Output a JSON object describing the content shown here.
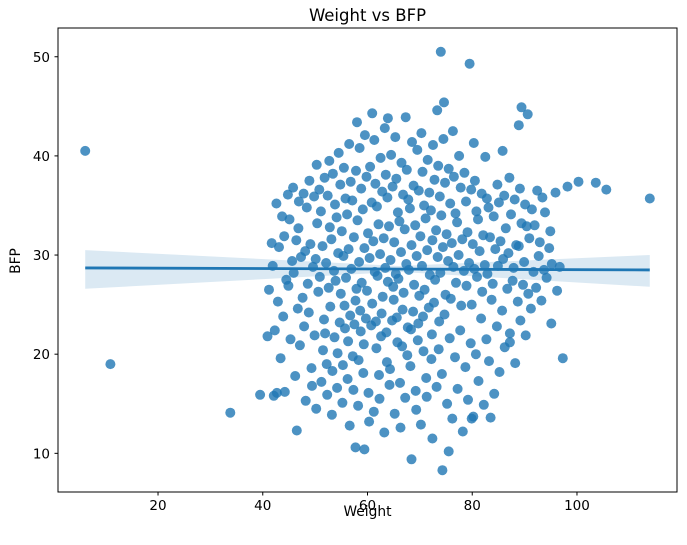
{
  "figure": {
    "title": "Weight vs BFP"
  },
  "chart_data": {
    "type": "scatter",
    "title": "Weight vs BFP",
    "xlabel": "Weight",
    "ylabel": "BFP",
    "xlim": [
      0.9,
      119.1
    ],
    "ylim": [
      6.1,
      52.9
    ],
    "xticks": [
      20,
      40,
      60,
      80,
      100
    ],
    "yticks": [
      10,
      20,
      30,
      40,
      50
    ],
    "grid": false,
    "legend": "none",
    "marker_color": "#1f77b4",
    "marker_alpha": 0.8,
    "regression_line": {
      "color": "#1f77b4",
      "x": [
        6.1,
        113.9
      ],
      "y": [
        28.7,
        28.5
      ]
    },
    "confidence_band": {
      "color": "#1f77b4",
      "opacity": 0.16,
      "x": [
        6.1,
        66.0,
        113.9
      ],
      "top": [
        30.5,
        28.9,
        30.0
      ],
      "bottom": [
        26.6,
        28.3,
        26.8
      ]
    },
    "points": [
      [
        6.1,
        40.5
      ],
      [
        10.9,
        19.0
      ],
      [
        33.8,
        14.1
      ],
      [
        113.9,
        35.7
      ],
      [
        74.0,
        50.5
      ],
      [
        79.5,
        49.3
      ],
      [
        74.6,
        45.4
      ],
      [
        89.4,
        44.9
      ],
      [
        90.6,
        44.2
      ],
      [
        88.9,
        43.1
      ],
      [
        74.3,
        8.3
      ],
      [
        68.4,
        9.4
      ],
      [
        75.5,
        10.2
      ],
      [
        57.7,
        10.6
      ],
      [
        59.4,
        10.4
      ],
      [
        72.4,
        11.5
      ],
      [
        79.9,
        13.5
      ],
      [
        83.5,
        13.6
      ],
      [
        95.9,
        36.3
      ],
      [
        98.2,
        36.9
      ],
      [
        100.3,
        37.4
      ],
      [
        103.6,
        37.3
      ],
      [
        105.6,
        36.6
      ],
      [
        97.3,
        19.6
      ],
      [
        95.1,
        23.1
      ],
      [
        87.2,
        21.2
      ],
      [
        46.5,
        12.3
      ],
      [
        39.5,
        15.9
      ],
      [
        42.7,
        16.1
      ],
      [
        41.2,
        26.5
      ],
      [
        41.7,
        31.2
      ],
      [
        40.9,
        21.8
      ],
      [
        42.3,
        22.4
      ],
      [
        41.9,
        28.9
      ],
      [
        42.6,
        35.2
      ],
      [
        42.1,
        15.8
      ],
      [
        43.4,
        19.6
      ],
      [
        42.9,
        25.3
      ],
      [
        43.1,
        30.8
      ],
      [
        43.7,
        33.9
      ],
      [
        44.2,
        16.2
      ],
      [
        43.9,
        23.8
      ],
      [
        44.5,
        27.5
      ],
      [
        44.1,
        31.9
      ],
      [
        44.8,
        36.1
      ],
      [
        45.3,
        21.5
      ],
      [
        44.9,
        26.9
      ],
      [
        45.6,
        29.4
      ],
      [
        45.1,
        33.6
      ],
      [
        45.8,
        36.8
      ],
      [
        46.2,
        17.8
      ],
      [
        46.7,
        24.6
      ],
      [
        45.9,
        28.2
      ],
      [
        46.4,
        31.5
      ],
      [
        46.9,
        35.4
      ],
      [
        47.1,
        20.9
      ],
      [
        47.6,
        25.7
      ],
      [
        47.3,
        29.8
      ],
      [
        46.8,
        32.7
      ],
      [
        47.8,
        36.2
      ],
      [
        48.2,
        15.3
      ],
      [
        47.9,
        22.8
      ],
      [
        48.6,
        27.1
      ],
      [
        48.1,
        30.4
      ],
      [
        48.4,
        34.8
      ],
      [
        48.9,
        37.5
      ],
      [
        49.3,
        18.6
      ],
      [
        48.8,
        24.2
      ],
      [
        49.6,
        28.8
      ],
      [
        49.1,
        31.1
      ],
      [
        49.8,
        35.9
      ],
      [
        49.4,
        16.8
      ],
      [
        50.2,
        14.5
      ],
      [
        49.9,
        21.9
      ],
      [
        50.6,
        26.3
      ],
      [
        50.1,
        29.6
      ],
      [
        50.4,
        33.2
      ],
      [
        50.8,
        36.6
      ],
      [
        50.3,
        39.1
      ],
      [
        51.2,
        17.2
      ],
      [
        51.7,
        23.5
      ],
      [
        50.9,
        27.8
      ],
      [
        51.4,
        30.9
      ],
      [
        51.1,
        34.4
      ],
      [
        51.8,
        37.8
      ],
      [
        51.5,
        20.4
      ],
      [
        52.3,
        15.9
      ],
      [
        51.9,
        22.1
      ],
      [
        52.6,
        26.7
      ],
      [
        52.1,
        29.2
      ],
      [
        52.8,
        32.8
      ],
      [
        52.4,
        36.0
      ],
      [
        52.7,
        39.5
      ],
      [
        52.2,
        19.0
      ],
      [
        53.3,
        18.3
      ],
      [
        52.9,
        24.8
      ],
      [
        53.6,
        28.4
      ],
      [
        53.1,
        31.6
      ],
      [
        53.8,
        35.1
      ],
      [
        53.4,
        38.2
      ],
      [
        53.7,
        21.7
      ],
      [
        53.2,
        13.9
      ],
      [
        54.2,
        16.6
      ],
      [
        54.7,
        23.2
      ],
      [
        53.9,
        27.4
      ],
      [
        54.4,
        30.2
      ],
      [
        54.1,
        33.8
      ],
      [
        54.8,
        37.1
      ],
      [
        54.5,
        40.3
      ],
      [
        54.3,
        20.1
      ],
      [
        55.2,
        15.1
      ],
      [
        55.7,
        22.6
      ],
      [
        54.9,
        26.1
      ],
      [
        55.4,
        29.9
      ],
      [
        55.1,
        32.4
      ],
      [
        55.8,
        35.7
      ],
      [
        55.5,
        38.8
      ],
      [
        55.3,
        18.9
      ],
      [
        55.6,
        24.9
      ],
      [
        56.2,
        17.5
      ],
      [
        56.7,
        23.9
      ],
      [
        55.9,
        27.7
      ],
      [
        56.4,
        30.6
      ],
      [
        56.1,
        34.1
      ],
      [
        56.8,
        37.4
      ],
      [
        56.5,
        41.2
      ],
      [
        56.3,
        21.3
      ],
      [
        56.6,
        12.8
      ],
      [
        57.2,
        19.8
      ],
      [
        57.7,
        25.4
      ],
      [
        56.9,
        28.6
      ],
      [
        57.4,
        31.8
      ],
      [
        57.1,
        35.5
      ],
      [
        57.8,
        38.5
      ],
      [
        57.5,
        23.0
      ],
      [
        57.3,
        16.4
      ],
      [
        58.2,
        14.8
      ],
      [
        58.7,
        22.3
      ],
      [
        57.9,
        26.6
      ],
      [
        58.4,
        29.3
      ],
      [
        58.1,
        33.5
      ],
      [
        58.8,
        36.7
      ],
      [
        58.5,
        40.8
      ],
      [
        58.3,
        19.4
      ],
      [
        58.6,
        24.4
      ],
      [
        58.0,
        43.4
      ],
      [
        59.2,
        18.1
      ],
      [
        59.7,
        23.6
      ],
      [
        58.9,
        27.2
      ],
      [
        59.4,
        30.7
      ],
      [
        59.1,
        34.6
      ],
      [
        59.8,
        37.9
      ],
      [
        59.5,
        42.1
      ],
      [
        59.3,
        21.0
      ],
      [
        60.2,
        16.1
      ],
      [
        60.7,
        22.9
      ],
      [
        59.9,
        26.4
      ],
      [
        60.4,
        29.7
      ],
      [
        60.1,
        32.2
      ],
      [
        60.8,
        35.3
      ],
      [
        60.5,
        38.9
      ],
      [
        60.3,
        13.2
      ],
      [
        60.9,
        44.3
      ],
      [
        61.2,
        14.2
      ],
      [
        61.7,
        20.6
      ],
      [
        60.9,
        25.1
      ],
      [
        61.4,
        28.3
      ],
      [
        61.1,
        31.4
      ],
      [
        61.8,
        34.9
      ],
      [
        61.5,
        37.2
      ],
      [
        61.3,
        41.6
      ],
      [
        61.6,
        23.3
      ],
      [
        62.2,
        17.9
      ],
      [
        62.7,
        24.1
      ],
      [
        61.9,
        27.9
      ],
      [
        62.4,
        30.1
      ],
      [
        62.1,
        33.1
      ],
      [
        62.8,
        36.4
      ],
      [
        62.5,
        39.8
      ],
      [
        62.3,
        15.5
      ],
      [
        62.6,
        21.8
      ],
      [
        63.2,
        12.1
      ],
      [
        63.7,
        19.2
      ],
      [
        62.9,
        25.8
      ],
      [
        63.4,
        28.7
      ],
      [
        63.1,
        31.7
      ],
      [
        63.8,
        35.8
      ],
      [
        63.5,
        38.1
      ],
      [
        63.3,
        42.8
      ],
      [
        63.6,
        22.2
      ],
      [
        64.2,
        16.9
      ],
      [
        64.7,
        23.4
      ],
      [
        63.9,
        27.3
      ],
      [
        64.4,
        29.5
      ],
      [
        64.1,
        32.9
      ],
      [
        64.8,
        36.9
      ],
      [
        64.5,
        40.1
      ],
      [
        64.3,
        18.5
      ],
      [
        63.9,
        43.8
      ],
      [
        65.2,
        14.0
      ],
      [
        65.7,
        21.2
      ],
      [
        64.9,
        26.8
      ],
      [
        65.4,
        28.1
      ],
      [
        65.1,
        31.3
      ],
      [
        65.8,
        34.3
      ],
      [
        65.5,
        37.7
      ],
      [
        65.3,
        41.9
      ],
      [
        65.6,
        23.7
      ],
      [
        65.0,
        25.5
      ],
      [
        66.2,
        17.1
      ],
      [
        66.7,
        24.5
      ],
      [
        65.9,
        27.6
      ],
      [
        66.4,
        30.3
      ],
      [
        66.1,
        33.4
      ],
      [
        66.8,
        36.1
      ],
      [
        66.5,
        39.3
      ],
      [
        66.3,
        12.6
      ],
      [
        66.6,
        20.8
      ],
      [
        67.2,
        15.6
      ],
      [
        67.7,
        22.7
      ],
      [
        66.9,
        26.2
      ],
      [
        67.4,
        29.1
      ],
      [
        67.1,
        32.6
      ],
      [
        67.8,
        35.6
      ],
      [
        67.5,
        38.6
      ],
      [
        67.3,
        43.9
      ],
      [
        67.6,
        19.9
      ],
      [
        68.2,
        18.8
      ],
      [
        68.7,
        24.3
      ],
      [
        67.9,
        28.5
      ],
      [
        68.4,
        31.0
      ],
      [
        68.1,
        34.7
      ],
      [
        68.8,
        37.0
      ],
      [
        68.5,
        41.4
      ],
      [
        68.3,
        22.5
      ],
      [
        69.2,
        16.3
      ],
      [
        69.7,
        23.1
      ],
      [
        68.9,
        27.0
      ],
      [
        69.4,
        29.9
      ],
      [
        69.1,
        33.0
      ],
      [
        69.8,
        36.5
      ],
      [
        69.5,
        40.6
      ],
      [
        69.3,
        14.4
      ],
      [
        69.6,
        21.4
      ],
      [
        70.2,
        12.9
      ],
      [
        70.7,
        20.3
      ],
      [
        69.9,
        25.9
      ],
      [
        70.4,
        28.9
      ],
      [
        70.1,
        31.9
      ],
      [
        70.8,
        35.0
      ],
      [
        70.5,
        38.4
      ],
      [
        70.3,
        42.3
      ],
      [
        70.6,
        23.8
      ],
      [
        71.2,
        17.6
      ],
      [
        71.7,
        24.7
      ],
      [
        70.9,
        26.5
      ],
      [
        71.4,
        30.5
      ],
      [
        71.1,
        33.7
      ],
      [
        71.8,
        36.3
      ],
      [
        71.5,
        39.6
      ],
      [
        71.3,
        15.7
      ],
      [
        72.2,
        19.5
      ],
      [
        72.7,
        25.2
      ],
      [
        71.9,
        28.0
      ],
      [
        72.4,
        31.5
      ],
      [
        72.1,
        34.5
      ],
      [
        72.8,
        37.6
      ],
      [
        72.5,
        41.1
      ],
      [
        72.3,
        22.0
      ],
      [
        73.2,
        16.7
      ],
      [
        73.7,
        23.3
      ],
      [
        72.9,
        27.5
      ],
      [
        73.4,
        29.8
      ],
      [
        73.1,
        32.5
      ],
      [
        73.8,
        35.9
      ],
      [
        73.5,
        39.0
      ],
      [
        73.3,
        44.6
      ],
      [
        73.6,
        20.5
      ],
      [
        74.2,
        18.0
      ],
      [
        74.7,
        24.0
      ],
      [
        73.9,
        28.2
      ],
      [
        74.4,
        30.8
      ],
      [
        74.1,
        34.0
      ],
      [
        74.8,
        37.3
      ],
      [
        74.5,
        41.7
      ],
      [
        75.2,
        15.0
      ],
      [
        75.7,
        21.6
      ],
      [
        74.9,
        26.0
      ],
      [
        75.4,
        29.4
      ],
      [
        75.1,
        32.1
      ],
      [
        75.8,
        35.2
      ],
      [
        75.5,
        38.7
      ],
      [
        76.2,
        13.5
      ],
      [
        76.7,
        19.7
      ],
      [
        75.9,
        25.6
      ],
      [
        76.4,
        28.8
      ],
      [
        76.1,
        31.2
      ],
      [
        76.8,
        34.2
      ],
      [
        76.5,
        37.9
      ],
      [
        76.3,
        42.5
      ],
      [
        77.2,
        16.5
      ],
      [
        77.7,
        22.4
      ],
      [
        76.9,
        27.2
      ],
      [
        77.4,
        30.0
      ],
      [
        77.1,
        33.3
      ],
      [
        77.8,
        36.8
      ],
      [
        77.5,
        40.0
      ],
      [
        78.2,
        12.2
      ],
      [
        78.7,
        18.7
      ],
      [
        77.9,
        24.9
      ],
      [
        78.4,
        28.4
      ],
      [
        78.1,
        31.6
      ],
      [
        78.8,
        35.4
      ],
      [
        78.5,
        38.3
      ],
      [
        79.2,
        15.4
      ],
      [
        79.7,
        21.1
      ],
      [
        78.9,
        26.9
      ],
      [
        79.4,
        29.2
      ],
      [
        79.1,
        32.3
      ],
      [
        79.8,
        36.6
      ],
      [
        80.2,
        13.7
      ],
      [
        80.7,
        20.0
      ],
      [
        79.9,
        25.0
      ],
      [
        80.4,
        28.6
      ],
      [
        80.1,
        31.1
      ],
      [
        80.8,
        34.4
      ],
      [
        80.5,
        37.5
      ],
      [
        80.3,
        41.3
      ],
      [
        81.2,
        17.3
      ],
      [
        81.7,
        23.6
      ],
      [
        80.9,
        27.8
      ],
      [
        81.4,
        30.4
      ],
      [
        81.1,
        33.6
      ],
      [
        81.8,
        36.2
      ],
      [
        82.2,
        14.9
      ],
      [
        82.7,
        21.5
      ],
      [
        81.9,
        26.3
      ],
      [
        82.4,
        29.0
      ],
      [
        82.1,
        32.0
      ],
      [
        82.8,
        35.7
      ],
      [
        82.5,
        39.9
      ],
      [
        83.2,
        19.3
      ],
      [
        83.7,
        25.5
      ],
      [
        82.9,
        28.1
      ],
      [
        83.4,
        31.8
      ],
      [
        83.1,
        34.8
      ],
      [
        84.2,
        16.0
      ],
      [
        84.7,
        22.8
      ],
      [
        83.9,
        27.1
      ],
      [
        84.4,
        30.6
      ],
      [
        84.1,
        33.9
      ],
      [
        84.8,
        37.1
      ],
      [
        85.2,
        18.2
      ],
      [
        85.7,
        24.4
      ],
      [
        84.9,
        28.9
      ],
      [
        85.4,
        31.4
      ],
      [
        85.1,
        35.3
      ],
      [
        85.8,
        40.5
      ],
      [
        86.2,
        20.7
      ],
      [
        86.7,
        26.6
      ],
      [
        85.9,
        29.6
      ],
      [
        86.4,
        32.7
      ],
      [
        86.1,
        36.0
      ],
      [
        87.2,
        22.1
      ],
      [
        87.7,
        27.4
      ],
      [
        86.9,
        30.2
      ],
      [
        87.4,
        34.1
      ],
      [
        87.1,
        37.8
      ],
      [
        88.2,
        19.1
      ],
      [
        88.7,
        25.3
      ],
      [
        87.9,
        28.7
      ],
      [
        88.4,
        31.0
      ],
      [
        88.1,
        35.6
      ],
      [
        89.2,
        23.4
      ],
      [
        89.7,
        27.0
      ],
      [
        88.9,
        30.9
      ],
      [
        89.4,
        33.2
      ],
      [
        89.1,
        36.7
      ],
      [
        90.2,
        21.9
      ],
      [
        90.7,
        26.1
      ],
      [
        89.9,
        29.3
      ],
      [
        90.4,
        32.9
      ],
      [
        90.1,
        35.1
      ],
      [
        91.2,
        24.6
      ],
      [
        91.7,
        28.3
      ],
      [
        90.9,
        31.7
      ],
      [
        91.4,
        34.6
      ],
      [
        92.2,
        26.7
      ],
      [
        92.7,
        29.9
      ],
      [
        91.9,
        33.0
      ],
      [
        92.4,
        36.5
      ],
      [
        93.2,
        25.4
      ],
      [
        93.7,
        28.5
      ],
      [
        92.9,
        31.3
      ],
      [
        93.4,
        35.8
      ],
      [
        94.2,
        27.7
      ],
      [
        94.7,
        30.7
      ],
      [
        93.9,
        34.3
      ],
      [
        95.2,
        29.1
      ],
      [
        94.9,
        32.4
      ],
      [
        96.2,
        26.4
      ],
      [
        96.7,
        28.8
      ]
    ]
  }
}
